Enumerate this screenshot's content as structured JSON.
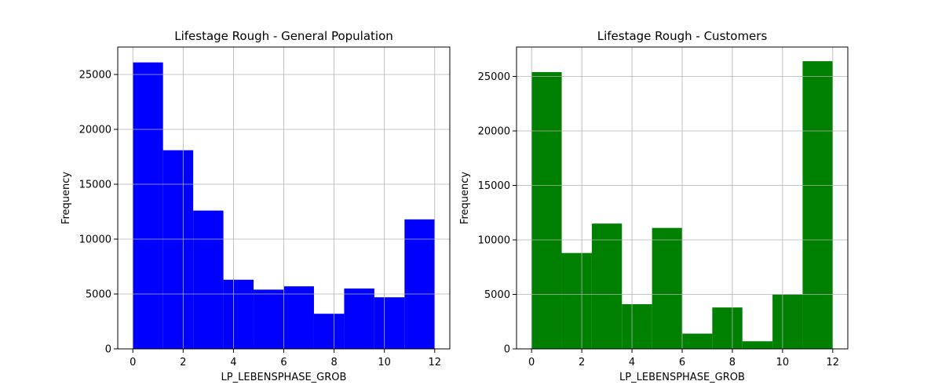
{
  "chart_data": [
    {
      "type": "bar",
      "title": "Lifestage Rough - General Population",
      "xlabel": "LP_LEBENSPHASE_GROB",
      "ylabel": "Frequency",
      "color": "#0000ff",
      "bin_edges": [
        0,
        1.2,
        2.4,
        3.6,
        4.8,
        6.0,
        7.2,
        8.4,
        9.6,
        10.8,
        12.0
      ],
      "values": [
        26100,
        18100,
        12600,
        6300,
        5400,
        5700,
        3200,
        5500,
        4700,
        11800
      ],
      "xlim": [
        -0.6,
        12.6
      ],
      "ylim": [
        0,
        27500
      ],
      "xticks": [
        0,
        2,
        4,
        6,
        8,
        10,
        12
      ],
      "yticks": [
        0,
        5000,
        10000,
        15000,
        20000,
        25000
      ],
      "grid": true
    },
    {
      "type": "bar",
      "title": "Lifestage Rough - Customers",
      "xlabel": "LP_LEBENSPHASE_GROB",
      "ylabel": "Frequency",
      "color": "#008000",
      "bin_edges": [
        0,
        1.2,
        2.4,
        3.6,
        4.8,
        6.0,
        7.2,
        8.4,
        9.6,
        10.8,
        12.0
      ],
      "values": [
        25400,
        8800,
        11500,
        4100,
        11100,
        1400,
        3800,
        700,
        5000,
        26400
      ],
      "xlim": [
        -0.6,
        12.6
      ],
      "ylim": [
        0,
        27700
      ],
      "xticks": [
        0,
        2,
        4,
        6,
        8,
        10,
        12
      ],
      "yticks": [
        0,
        5000,
        10000,
        15000,
        20000,
        25000
      ],
      "grid": true
    }
  ]
}
